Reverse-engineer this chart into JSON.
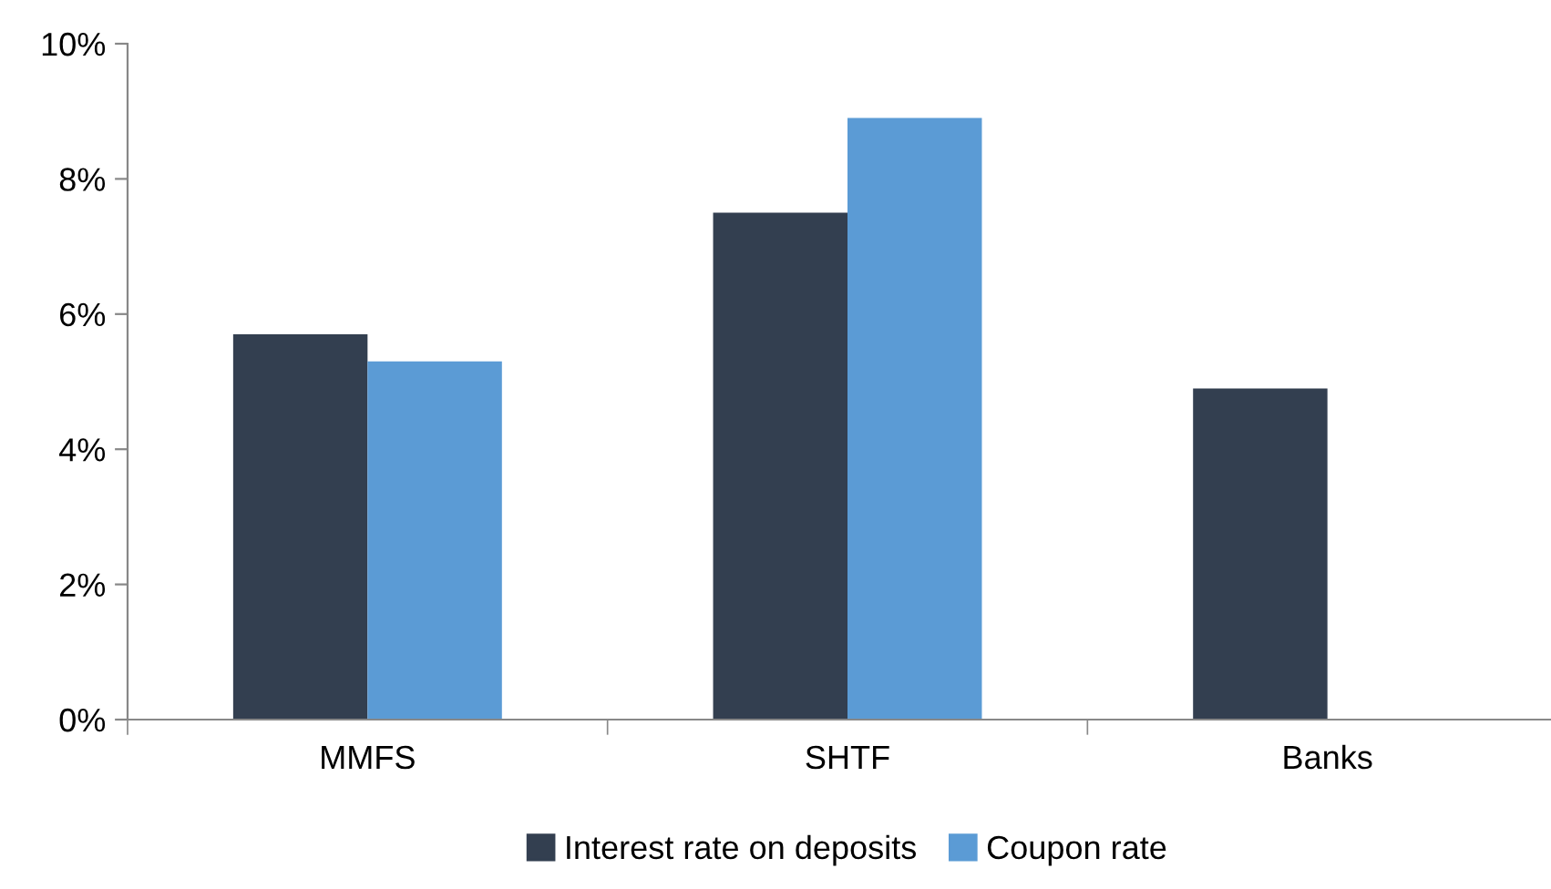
{
  "chart_data": {
    "type": "bar",
    "categories": [
      "MMFS",
      "SHTF",
      "Banks"
    ],
    "series": [
      {
        "name": "Interest rate on deposits",
        "color": "#333f50",
        "values": [
          5.7,
          7.5,
          4.9
        ]
      },
      {
        "name": "Coupon rate",
        "color": "#5b9bd5",
        "values": [
          5.3,
          8.9,
          null
        ]
      }
    ],
    "ylim": [
      0,
      10
    ],
    "yticks": [
      {
        "value": 0,
        "label": "0%"
      },
      {
        "value": 2,
        "label": "2%"
      },
      {
        "value": 4,
        "label": "4%"
      },
      {
        "value": 6,
        "label": "6%"
      },
      {
        "value": 8,
        "label": "8%"
      },
      {
        "value": 10,
        "label": "10%"
      }
    ],
    "grid": false,
    "legend": "bottom"
  }
}
